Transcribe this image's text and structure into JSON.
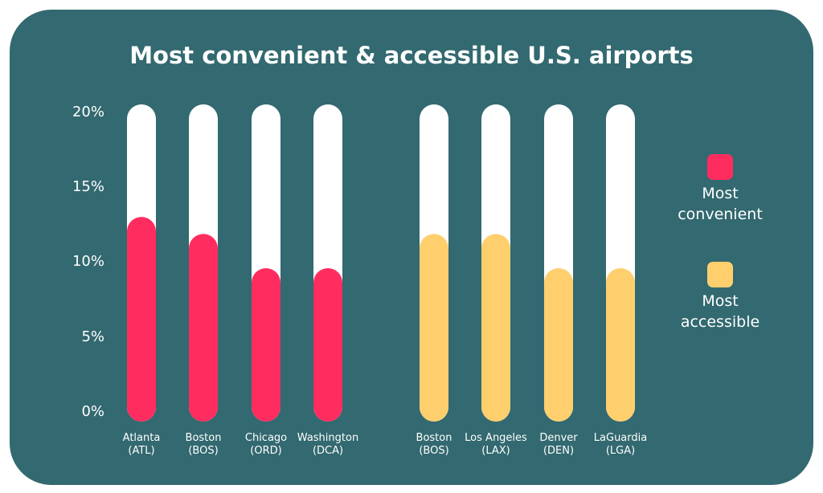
{
  "chart_data": {
    "type": "bar",
    "title": "Most convenient & accessible U.S. airports",
    "ylim": [
      0,
      20
    ],
    "yticks": [
      "0%",
      "5%",
      "10%",
      "15%",
      "20%"
    ],
    "grid": false,
    "legend_placement": "right",
    "series": [
      {
        "name": "Most convenient",
        "color": "#ff2d5f",
        "categories": [
          "Atlanta (ATL)",
          "Boston (BOS)",
          "Chicago (ORD)",
          "Washington (DCA)"
        ],
        "values": [
          13,
          12,
          10,
          10
        ]
      },
      {
        "name": "Most accessible",
        "color": "#ffcf6e",
        "categories": [
          "Boston (BOS)",
          "Los Angeles (LAX)",
          "Denver (DEN)",
          "LaGuardia (LGA)"
        ],
        "values": [
          12,
          12,
          10,
          10
        ]
      }
    ],
    "legend": [
      {
        "line1": "Most",
        "line2": "convenient"
      },
      {
        "line1": "Most",
        "line2": "accessible"
      }
    ]
  },
  "colors": {
    "background": "#336970",
    "track": "#ffffff"
  }
}
